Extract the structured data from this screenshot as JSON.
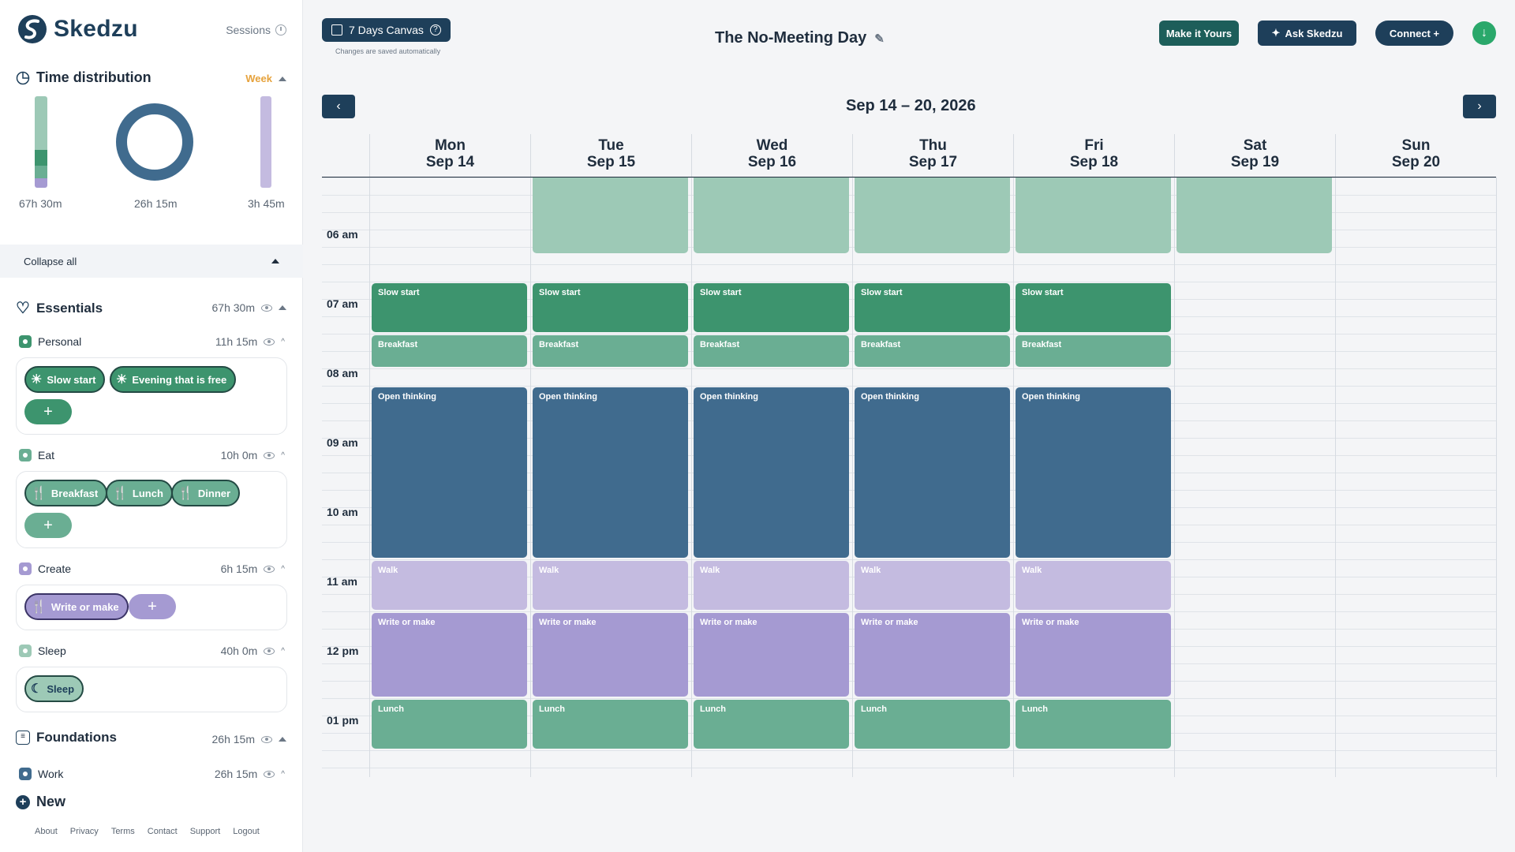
{
  "app": {
    "name": "Skedzu",
    "sessions_label": "Sessions"
  },
  "distribution": {
    "title": "Time distribution",
    "period": "Week",
    "left_label": "67h 30m",
    "center_label": "26h 15m",
    "right_label": "3h 45m"
  },
  "collapse_label": "Collapse all",
  "essentials": {
    "label": "Essentials",
    "total": "67h 30m"
  },
  "personal": {
    "label": "Personal",
    "total": "11h 15m",
    "chips": [
      "Slow start",
      "Evening that is free"
    ]
  },
  "eat": {
    "label": "Eat",
    "total": "10h 0m",
    "chips": [
      "Breakfast",
      "Lunch",
      "Dinner"
    ]
  },
  "create": {
    "label": "Create",
    "total": "6h 15m",
    "chips": [
      "Write or make"
    ]
  },
  "sleep": {
    "label": "Sleep",
    "total": "40h 0m",
    "chips": [
      "Sleep"
    ]
  },
  "foundations": {
    "label": "Foundations",
    "total": "26h 15m"
  },
  "work": {
    "label": "Work",
    "total": "26h 15m"
  },
  "new_label": "New",
  "footer": [
    "About",
    "Privacy",
    "Terms",
    "Contact",
    "Support",
    "Logout"
  ],
  "header": {
    "canvas_label": "7 Days Canvas",
    "saved_note": "Changes are saved automatically",
    "title": "The No-Meeting Day",
    "make_label": "Make it Yours",
    "ask_label": "Ask Skedzu",
    "connect_label": "Connect +"
  },
  "calendar": {
    "range": "Sep 14 – 20, 2026",
    "days": [
      {
        "dow": "Mon",
        "date": "Sep 14"
      },
      {
        "dow": "Tue",
        "date": "Sep 15"
      },
      {
        "dow": "Wed",
        "date": "Sep 16"
      },
      {
        "dow": "Thu",
        "date": "Sep 17"
      },
      {
        "dow": "Fri",
        "date": "Sep 18"
      },
      {
        "dow": "Sat",
        "date": "Sep 19"
      },
      {
        "dow": "Sun",
        "date": "Sep 20"
      }
    ],
    "times": [
      "06 am",
      "07 am",
      "08 am",
      "09 am",
      "10 am",
      "11 am",
      "12 pm",
      "01 pm"
    ],
    "events": [
      "Slow start",
      "Breakfast",
      "Open thinking",
      "Walk",
      "Write or make",
      "Lunch"
    ]
  },
  "colors": {
    "sleep": "#9dc9b6",
    "slow": "#3d946e",
    "eat": "#6aae93",
    "work": "#406b8e",
    "walk": "#c4bbe0",
    "create": "#a59ad2",
    "brand": "#1e3f5a"
  }
}
